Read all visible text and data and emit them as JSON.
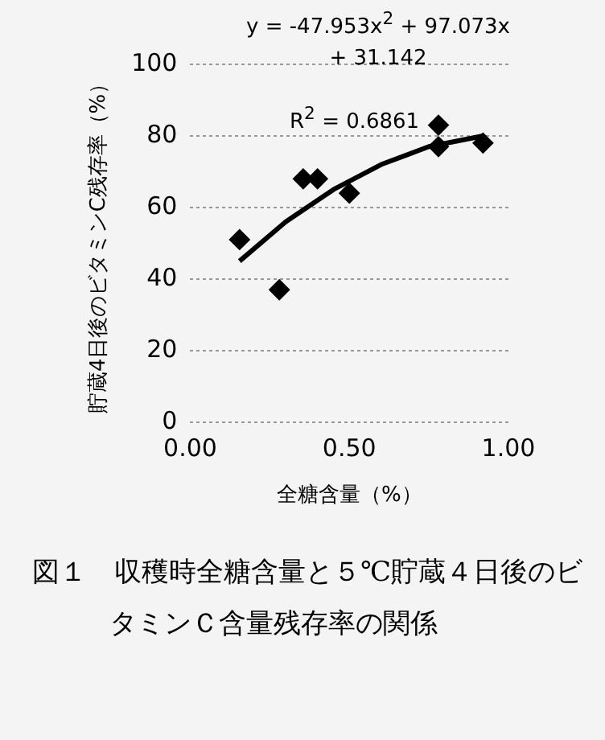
{
  "chart_data": {
    "type": "scatter",
    "title": "図１　収穫時全糖含量と５℃貯蔵４日後のビタミンＣ含量残存率の関係",
    "xlabel": "全糖含量（%）",
    "ylabel": "貯蔵4日後のビタミンC残存率（%）",
    "annotations": [
      "y = -47.953x$^{2}$ + 97.073x + 31.142",
      "R$^{2}$ = 0.6861"
    ],
    "series": [
      {
        "type": "scatter",
        "color": "#000000",
        "marker": "diamond",
        "x": [
          0.155,
          0.28,
          0.355,
          0.4,
          0.5,
          0.78,
          0.78,
          0.92
        ],
        "values": [
          51,
          37,
          68,
          68,
          64,
          83,
          77,
          78
        ]
      },
      {
        "type": "line",
        "color": "#000000",
        "marker": "none",
        "x": [
          0.155,
          0.3,
          0.45,
          0.6,
          0.75,
          0.92
        ],
        "values": [
          45,
          56,
          65,
          72,
          77,
          80
        ]
      }
    ],
    "xlim": [
      0,
      1
    ],
    "xticks": [
      {
        "value": 0,
        "label": "0.00"
      },
      {
        "value": 0.5,
        "label": "0.50"
      },
      {
        "value": 1,
        "label": "1.00"
      }
    ],
    "ylim": [
      0,
      100
    ],
    "yticks": [
      0,
      20,
      40,
      60,
      80,
      100
    ],
    "grid": "y",
    "legend": false
  }
}
